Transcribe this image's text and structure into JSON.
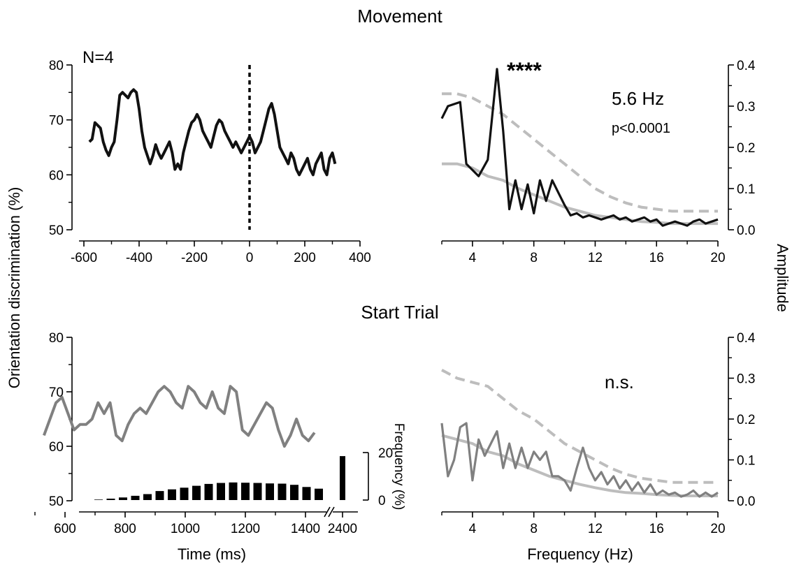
{
  "figure": {
    "title_top": "Movement",
    "title_bottom": "Start Trial",
    "ylabel_left": "Orientation discrimination (%)",
    "ylabel_right": "Amplitude",
    "xlabel_time": "Time (ms)",
    "xlabel_freq": "Frequency (Hz)",
    "n_label": "N=4",
    "stars": "****",
    "peak_freq": "5.6 Hz",
    "p_value": "p<0.0001",
    "ns_label": "n.s.",
    "freq_axis_label": "Frequency (%)",
    "break_tick": "2400"
  },
  "colors": {
    "black_trace": "#111111",
    "gray_trace": "#808080",
    "light_gray": "#bdbdbd",
    "bars": "#000000"
  },
  "chart_data": [
    {
      "id": "movement-time",
      "type": "line",
      "xlabel": "",
      "ylabel": "Orientation discrimination (%)",
      "xlim": [
        -600,
        400
      ],
      "ylim": [
        50,
        80
      ],
      "xticks": [
        -600,
        -400,
        -200,
        0,
        200,
        400
      ],
      "yticks": [
        50,
        60,
        70,
        80
      ],
      "vline_x": 0,
      "series": [
        {
          "x": [
            -580,
            -570,
            -560,
            -550,
            -540,
            -530,
            -520,
            -510,
            -500,
            -490,
            -480,
            -470,
            -460,
            -450,
            -440,
            -430,
            -420,
            -410,
            -400,
            -390,
            -380,
            -370,
            -360,
            -350,
            -340,
            -330,
            -320,
            -310,
            -300,
            -290,
            -280,
            -270,
            -260,
            -250,
            -240,
            -230,
            -220,
            -210,
            -200,
            -190,
            -180,
            -170,
            -160,
            -150,
            -140,
            -130,
            -120,
            -110,
            -100,
            -90,
            -80,
            -70,
            -60,
            -50,
            -40,
            -30,
            -20,
            -10,
            0,
            10,
            20,
            30,
            40,
            50,
            60,
            70,
            80,
            90,
            100,
            110,
            120,
            130,
            140,
            150,
            160,
            170,
            180,
            190,
            200,
            210,
            220,
            230,
            240,
            250,
            260,
            270,
            280,
            290,
            300,
            310
          ],
          "y": [
            66,
            66.5,
            69.5,
            69,
            68.5,
            66,
            64.5,
            63.5,
            65,
            66,
            70,
            74.5,
            75,
            74.5,
            74,
            75,
            75.5,
            75,
            72,
            68,
            65,
            63.5,
            62,
            63.5,
            65.5,
            64,
            63,
            64,
            65,
            66,
            64,
            61,
            62,
            61,
            64,
            66,
            68,
            69.5,
            70,
            71,
            70,
            68,
            67,
            66,
            65,
            67,
            69,
            70,
            69.5,
            68,
            67,
            66,
            65,
            66,
            65,
            64,
            65,
            66,
            67,
            66,
            64,
            65,
            66,
            68,
            70,
            72,
            73,
            71,
            68,
            65,
            64,
            63,
            62,
            64,
            63,
            61,
            60,
            61,
            62,
            63,
            61,
            60,
            62,
            63,
            64,
            61,
            60,
            63,
            64,
            62
          ]
        }
      ]
    },
    {
      "id": "movement-freq",
      "type": "line",
      "xlabel": "",
      "ylabel": "Amplitude",
      "xlim": [
        2,
        20
      ],
      "ylim": [
        0,
        0.4
      ],
      "xticks": [
        4,
        8,
        12,
        16,
        20
      ],
      "yticks": [
        0.0,
        0.1,
        0.2,
        0.3,
        0.4
      ],
      "series": [
        {
          "style": "solid-black",
          "x": [
            2,
            2.4,
            3.2,
            3.6,
            4.4,
            5.0,
            5.6,
            6.0,
            6.4,
            6.8,
            7.2,
            7.6,
            8.0,
            8.4,
            8.8,
            9.2,
            9.6,
            10.0,
            10.4,
            10.8,
            11.2,
            11.6,
            12.0,
            12.4,
            12.8,
            13.2,
            13.6,
            14.0,
            14.4,
            14.8,
            15.2,
            15.6,
            16.0,
            16.4,
            16.8,
            17.2,
            17.6,
            18.0,
            18.4,
            18.8,
            19.2,
            19.6,
            20
          ],
          "y": [
            0.27,
            0.3,
            0.31,
            0.16,
            0.13,
            0.17,
            0.39,
            0.24,
            0.05,
            0.12,
            0.05,
            0.11,
            0.04,
            0.12,
            0.07,
            0.12,
            0.09,
            0.06,
            0.035,
            0.04,
            0.03,
            0.035,
            0.03,
            0.025,
            0.03,
            0.035,
            0.025,
            0.03,
            0.02,
            0.025,
            0.03,
            0.02,
            0.025,
            0.01,
            0.015,
            0.02,
            0.015,
            0.01,
            0.02,
            0.025,
            0.015,
            0.02,
            0.025
          ]
        },
        {
          "style": "dashed-lightgray",
          "x": [
            2,
            3,
            4,
            5,
            6,
            7,
            8,
            9,
            10,
            11,
            12,
            13,
            14,
            15,
            16,
            17,
            18,
            19,
            20
          ],
          "y": [
            0.33,
            0.33,
            0.32,
            0.3,
            0.28,
            0.25,
            0.22,
            0.19,
            0.16,
            0.13,
            0.1,
            0.08,
            0.065,
            0.055,
            0.05,
            0.045,
            0.045,
            0.045,
            0.045
          ]
        },
        {
          "style": "solid-lightgray",
          "x": [
            2,
            3,
            4,
            5,
            6,
            7,
            8,
            9,
            10,
            11,
            12,
            13,
            14,
            15,
            16,
            17,
            18,
            19,
            20
          ],
          "y": [
            0.16,
            0.16,
            0.15,
            0.13,
            0.12,
            0.1,
            0.085,
            0.07,
            0.055,
            0.045,
            0.035,
            0.03,
            0.025,
            0.02,
            0.018,
            0.015,
            0.015,
            0.015,
            0.015
          ]
        }
      ]
    },
    {
      "id": "starttrial-time",
      "type": "line",
      "xlabel": "Time (ms)",
      "ylabel": "Orientation discrimination (%)",
      "xlim": [
        500,
        1500
      ],
      "ylim": [
        50,
        80
      ],
      "xticks": [
        600,
        800,
        1000,
        1200,
        1400
      ],
      "yticks": [
        50,
        60,
        70,
        80
      ],
      "series": [
        {
          "x": [
            530,
            550,
            570,
            590,
            610,
            630,
            650,
            670,
            690,
            710,
            730,
            750,
            770,
            790,
            810,
            830,
            850,
            870,
            890,
            910,
            930,
            950,
            970,
            990,
            1010,
            1030,
            1050,
            1070,
            1090,
            1110,
            1130,
            1150,
            1170,
            1190,
            1210,
            1230,
            1250,
            1270,
            1290,
            1310,
            1330,
            1350,
            1370,
            1390,
            1410,
            1430
          ],
          "y": [
            62,
            65,
            68,
            69,
            66,
            63,
            64,
            64,
            65,
            68,
            66,
            68,
            62,
            61,
            64,
            66,
            67,
            66,
            68,
            70,
            71,
            70,
            68,
            67,
            71,
            70,
            68,
            67,
            70,
            67,
            66,
            71,
            70,
            63,
            62,
            64,
            66,
            68,
            67,
            63,
            60,
            62,
            65,
            62,
            61,
            62.5
          ]
        }
      ]
    },
    {
      "id": "starttrial-hist",
      "type": "bar",
      "xlabel": "Time (ms)",
      "ylabel": "Frequency (%)",
      "ylim": [
        0,
        20
      ],
      "yticks": [
        0,
        20
      ],
      "categories": [
        550,
        600,
        650,
        700,
        750,
        800,
        850,
        900,
        950,
        1000,
        1050,
        1100,
        1150,
        1200,
        1250,
        1300,
        1350,
        1400,
        1450,
        2400
      ],
      "values": [
        0.2,
        0.6,
        1.1,
        1.8,
        2.5,
        3.8,
        4.5,
        5.2,
        6,
        6.8,
        7.2,
        7.4,
        7.3,
        7.2,
        7.0,
        6.9,
        6.4,
        5.5,
        4.8,
        18.5
      ]
    },
    {
      "id": "starttrial-freq",
      "type": "line",
      "xlabel": "Frequency (Hz)",
      "ylabel": "Amplitude",
      "xlim": [
        2,
        20
      ],
      "ylim": [
        0,
        0.4
      ],
      "xticks": [
        4,
        8,
        12,
        16,
        20
      ],
      "yticks": [
        0.0,
        0.1,
        0.2,
        0.3,
        0.4
      ],
      "series": [
        {
          "style": "solid-gray",
          "x": [
            2,
            2.4,
            2.8,
            3.2,
            3.6,
            4.0,
            4.4,
            4.8,
            5.2,
            5.6,
            6.0,
            6.4,
            6.8,
            7.2,
            7.6,
            8.0,
            8.4,
            8.8,
            9.2,
            9.6,
            10.0,
            10.4,
            10.8,
            11.2,
            11.6,
            12.0,
            12.4,
            12.8,
            13.2,
            13.6,
            14.0,
            14.4,
            14.8,
            15.2,
            15.6,
            16.0,
            16.4,
            16.8,
            17.2,
            17.6,
            18.0,
            18.4,
            18.8,
            19.2,
            19.6,
            20
          ],
          "y": [
            0.19,
            0.06,
            0.1,
            0.18,
            0.19,
            0.05,
            0.15,
            0.11,
            0.14,
            0.17,
            0.08,
            0.14,
            0.08,
            0.13,
            0.08,
            0.12,
            0.1,
            0.12,
            0.06,
            0.06,
            0.05,
            0.025,
            0.08,
            0.13,
            0.08,
            0.05,
            0.07,
            0.04,
            0.06,
            0.03,
            0.05,
            0.025,
            0.045,
            0.02,
            0.04,
            0.015,
            0.025,
            0.015,
            0.02,
            0.01,
            0.015,
            0.025,
            0.01,
            0.02,
            0.01,
            0.02
          ]
        },
        {
          "style": "dashed-lightgray",
          "x": [
            2,
            3,
            4,
            5,
            6,
            7,
            8,
            9,
            10,
            11,
            12,
            13,
            14,
            15,
            16,
            17,
            18,
            19,
            20
          ],
          "y": [
            0.32,
            0.3,
            0.29,
            0.28,
            0.25,
            0.22,
            0.2,
            0.17,
            0.14,
            0.12,
            0.1,
            0.08,
            0.065,
            0.055,
            0.05,
            0.045,
            0.045,
            0.045,
            0.045
          ]
        },
        {
          "style": "solid-lightgray",
          "x": [
            2,
            3,
            4,
            5,
            6,
            7,
            8,
            9,
            10,
            11,
            12,
            13,
            14,
            15,
            16,
            17,
            18,
            19,
            20
          ],
          "y": [
            0.16,
            0.15,
            0.14,
            0.12,
            0.11,
            0.09,
            0.075,
            0.06,
            0.05,
            0.04,
            0.032,
            0.025,
            0.02,
            0.018,
            0.015,
            0.013,
            0.012,
            0.012,
            0.012
          ]
        }
      ]
    }
  ]
}
